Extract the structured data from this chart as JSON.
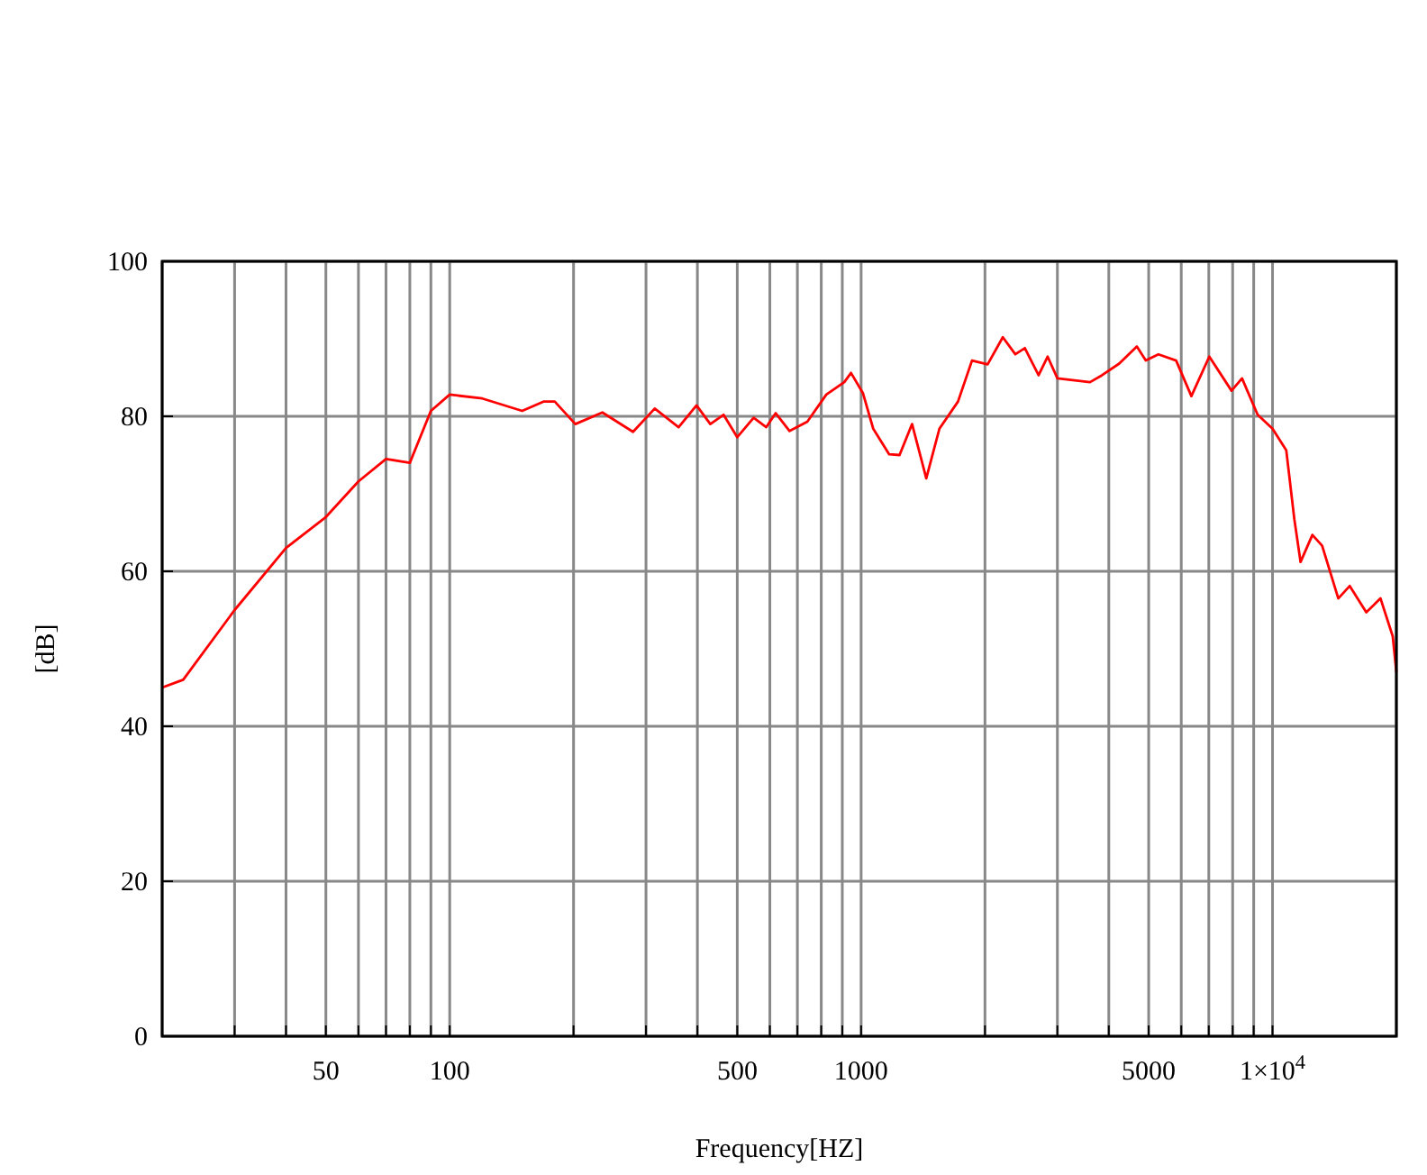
{
  "chart_data": {
    "type": "line",
    "xlabel": "Frequency[HZ]",
    "ylabel": "[dB]",
    "log": "x",
    "grid": true,
    "xlim": [
      20,
      20000
    ],
    "ylim": [
      0,
      100
    ],
    "xticks": [
      {
        "value": 20,
        "label": null
      },
      {
        "value": 30,
        "label": null
      },
      {
        "value": 40,
        "label": null
      },
      50,
      {
        "value": 60,
        "label": null
      },
      {
        "value": 70,
        "label": null
      },
      {
        "value": 80,
        "label": null
      },
      {
        "value": 90,
        "label": null
      },
      100,
      {
        "value": 200,
        "label": null
      },
      {
        "value": 300,
        "label": null
      },
      {
        "value": 400,
        "label": null
      },
      500,
      {
        "value": 600,
        "label": null
      },
      {
        "value": 700,
        "label": null
      },
      {
        "value": 800,
        "label": null
      },
      {
        "value": 900,
        "label": null
      },
      1000,
      {
        "value": 2000,
        "label": null
      },
      {
        "value": 3000,
        "label": null
      },
      {
        "value": 4000,
        "label": null
      },
      5000,
      {
        "value": 6000,
        "label": null
      },
      {
        "value": 7000,
        "label": null
      },
      {
        "value": 8000,
        "label": null
      },
      {
        "value": 9000,
        "label": null
      },
      {
        "value": 10000,
        "label": "1×10$^{4}$"
      },
      {
        "value": 20000,
        "label": null
      }
    ],
    "yticks": [
      0,
      20,
      40,
      60,
      80,
      100
    ],
    "series": [
      {
        "color": "#ff0000",
        "x": [
          20,
          22.5,
          30,
          40,
          50,
          60,
          70,
          80,
          90,
          100,
          120,
          150,
          169,
          180,
          202,
          235,
          279,
          315,
          360,
          398,
          430,
          463,
          500,
          548,
          588,
          620,
          670,
          740,
          823,
          910,
          945,
          1010,
          1070,
          1170,
          1240,
          1330,
          1440,
          1550,
          1720,
          1860,
          2030,
          2210,
          2370,
          2500,
          2700,
          2840,
          3000,
          3600,
          3850,
          4240,
          4680,
          4920,
          5280,
          5830,
          6350,
          7020,
          7950,
          8430,
          9200,
          10000,
          10800,
          11300,
          11700,
          12500,
          13200,
          14450,
          15400,
          16900,
          18300,
          19600,
          20000
        ],
        "values": [
          45,
          46,
          55,
          63,
          67,
          71.6,
          74.5,
          74,
          80.7,
          82.8,
          82.3,
          80.7,
          81.9,
          81.9,
          79,
          80.5,
          78,
          81,
          78.6,
          81.4,
          79,
          80.2,
          77.3,
          79.8,
          78.6,
          80.4,
          78.1,
          79.3,
          82.8,
          84.4,
          85.6,
          83,
          78.4,
          75.1,
          75,
          79,
          72,
          78.4,
          81.9,
          87.2,
          86.7,
          90.2,
          88,
          88.8,
          85.3,
          87.7,
          84.9,
          84.4,
          85.3,
          86.8,
          89,
          87.2,
          88,
          87.2,
          82.6,
          87.7,
          83.3,
          84.9,
          80.2,
          78.4,
          75.6,
          66.7,
          61.2,
          64.7,
          63.3,
          56.5,
          58.1,
          54.7,
          56.5,
          51.6,
          47
        ]
      }
    ]
  }
}
